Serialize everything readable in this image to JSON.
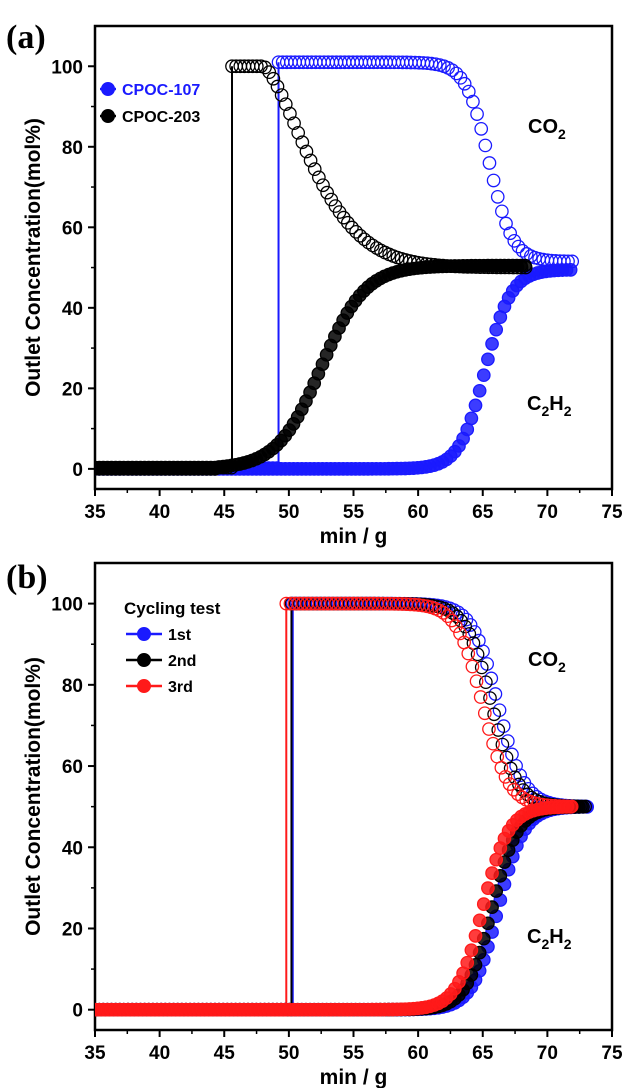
{
  "chart_data": [
    {
      "panel": "(a)",
      "type": "scatter",
      "xlabel": "min / g",
      "ylabel": "Outlet Concentration(mol%)",
      "xlim": [
        35,
        75
      ],
      "ylim": [
        -5,
        110
      ],
      "xticks": [
        "35",
        "40",
        "45",
        "50",
        "55",
        "60",
        "65",
        "70",
        "75"
      ],
      "yticks": [
        "0",
        "20",
        "40",
        "60",
        "80",
        "100"
      ],
      "annotations": [
        {
          "text": "CO",
          "sub": "2",
          "text2": ""
        },
        {
          "text": "C",
          "sub": "2",
          "text2": "H",
          "sub2": "2"
        }
      ],
      "legend_title": "",
      "legend": [
        {
          "name": "CPOC-107",
          "color": "#1a1aff",
          "text_color": "#1a1aff"
        },
        {
          "name": "CPOC-203",
          "color": "#000000",
          "text_color": "#000000"
        }
      ],
      "series": [
        {
          "name": "CPOC-107",
          "gas": "CO2",
          "color": "#1a1aff",
          "filled": false,
          "x_min": 49.2,
          "x_max": 72,
          "baseline": 0.2,
          "plateau": 101,
          "final": 51.5,
          "profile": "sigmoid",
          "midpoint": 65.5,
          "width": 0.9,
          "points": [
            [
              49.2,
              101
            ],
            [
              55,
              101
            ],
            [
              60,
              101
            ],
            [
              62,
              100.9
            ],
            [
              63,
              100.2
            ],
            [
              64,
              97
            ],
            [
              65,
              85
            ],
            [
              65.5,
              76
            ],
            [
              66,
              67
            ],
            [
              67,
              56
            ],
            [
              68,
              52.5
            ],
            [
              70,
              51.6
            ],
            [
              72,
              51.5
            ]
          ]
        },
        {
          "name": "CPOC-107",
          "gas": "C2H2",
          "color": "#1a1aff",
          "filled": true,
          "x_min": 35,
          "x_max": 72,
          "baseline": 0,
          "final": 49.5,
          "profile": "sigmoid",
          "midpoint": 65.2,
          "width": 1.0,
          "points": [
            [
              35,
              0
            ],
            [
              49,
              0
            ],
            [
              60,
              0
            ],
            [
              62,
              0
            ],
            [
              63,
              1
            ],
            [
              64,
              7
            ],
            [
              65,
              22
            ],
            [
              66,
              36
            ],
            [
              67,
              45
            ],
            [
              68,
              48.5
            ],
            [
              70,
              49.5
            ],
            [
              72,
              49.5
            ]
          ]
        },
        {
          "name": "CPOC-203",
          "gas": "CO2",
          "color": "#000000",
          "filled": false,
          "x_min": 45.6,
          "x_max": 68.5,
          "baseline": 0.3,
          "plateau": 100,
          "final": 50,
          "profile": "decay",
          "onset": 48,
          "tau": 5.0,
          "points": [
            [
              45.6,
              100
            ],
            [
              48,
              100
            ],
            [
              50,
              92
            ],
            [
              52,
              80
            ],
            [
              55,
              68
            ],
            [
              58,
              60
            ],
            [
              61,
              55
            ],
            [
              65,
              52
            ],
            [
              68.5,
              50.5
            ]
          ]
        },
        {
          "name": "CPOC-203",
          "gas": "C2H2",
          "color": "#000000",
          "filled": true,
          "x_min": 35,
          "x_max": 68.5,
          "baseline": 0,
          "final": 50.5,
          "profile": "rise",
          "midpoint": 52.5,
          "width": 1.7,
          "points": [
            [
              35,
              0
            ],
            [
              45,
              0
            ],
            [
              48,
              0
            ],
            [
              49.5,
              4
            ],
            [
              51,
              15
            ],
            [
              52.5,
              26
            ],
            [
              54,
              35
            ],
            [
              56,
              41
            ],
            [
              60,
              46
            ],
            [
              65,
              49
            ],
            [
              68.5,
              50.5
            ]
          ]
        }
      ],
      "vertical_jumps": [
        {
          "series": "CPOC-107",
          "x": 49.2
        },
        {
          "series": "CPOC-203",
          "x": 45.6
        }
      ]
    },
    {
      "panel": "(b)",
      "type": "scatter",
      "xlabel": "min / g",
      "ylabel": "Outlet Concentration(mol%)",
      "xlim": [
        35,
        75
      ],
      "ylim": [
        -5,
        110
      ],
      "xticks": [
        "35",
        "40",
        "45",
        "50",
        "55",
        "60",
        "65",
        "70",
        "75"
      ],
      "yticks": [
        "0",
        "20",
        "40",
        "60",
        "80",
        "100"
      ],
      "annotations": [
        {
          "text": "CO",
          "sub": "2",
          "text2": ""
        },
        {
          "text": "C",
          "sub": "2",
          "text2": "H",
          "sub2": "2"
        }
      ],
      "legend_title": "Cycling test",
      "legend": [
        {
          "name": "1st",
          "color": "#1a1aff",
          "text_color": "#000000"
        },
        {
          "name": "2nd",
          "color": "#000000",
          "text_color": "#000000"
        },
        {
          "name": "3rd",
          "color": "#ff1a1a",
          "text_color": "#000000"
        }
      ],
      "series": [
        {
          "name": "1st",
          "gas": "CO2",
          "color": "#1a1aff",
          "filled": false,
          "x_min": 50.3,
          "x_max": 73.3,
          "baseline": 0,
          "plateau": 100,
          "final": 50,
          "profile": "sigmoid",
          "midpoint": 66.2,
          "width": 1.0
        },
        {
          "name": "1st",
          "gas": "C2H2",
          "color": "#1a1aff",
          "filled": true,
          "x_min": 35,
          "x_max": 73.3,
          "baseline": 0,
          "final": 50,
          "profile": "sigmoid",
          "midpoint": 66.2,
          "width": 1.0
        },
        {
          "name": "2nd",
          "gas": "CO2",
          "color": "#000000",
          "filled": false,
          "x_min": 50.2,
          "x_max": 73.0,
          "baseline": 0,
          "plateau": 100,
          "final": 50,
          "profile": "sigmoid",
          "midpoint": 65.7,
          "width": 1.0
        },
        {
          "name": "2nd",
          "gas": "C2H2",
          "color": "#000000",
          "filled": true,
          "x_min": 35,
          "x_max": 73.0,
          "baseline": 0,
          "final": 50,
          "profile": "sigmoid",
          "midpoint": 65.7,
          "width": 1.0
        },
        {
          "name": "3rd",
          "gas": "CO2",
          "color": "#ff1a1a",
          "filled": false,
          "x_min": 49.8,
          "x_max": 72.0,
          "baseline": 0,
          "plateau": 100,
          "final": 50,
          "profile": "sigmoid",
          "midpoint": 65.0,
          "width": 1.0
        },
        {
          "name": "3rd",
          "gas": "C2H2",
          "color": "#ff1a1a",
          "filled": true,
          "x_min": 35,
          "x_max": 72.0,
          "baseline": 0,
          "final": 50,
          "profile": "sigmoid",
          "midpoint": 65.0,
          "width": 1.0
        }
      ],
      "vertical_jumps": [
        {
          "series": "1st",
          "x": 50.3
        },
        {
          "series": "2nd",
          "x": 50.2
        },
        {
          "series": "3rd",
          "x": 49.8
        }
      ]
    }
  ]
}
